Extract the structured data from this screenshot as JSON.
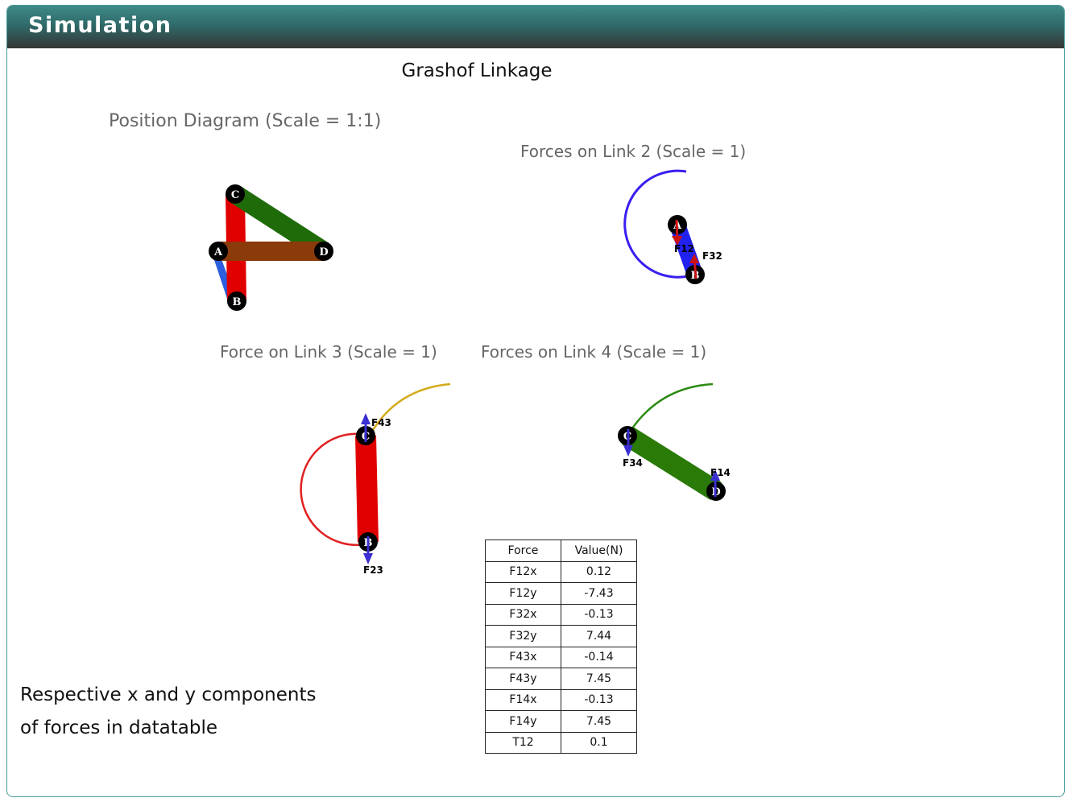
{
  "header": {
    "title": "Simulation"
  },
  "main": {
    "title": "Grashof Linkage",
    "position_diagram": {
      "title": "Position Diagram (Scale = 1:1)",
      "joints": [
        "A",
        "B",
        "C",
        "D"
      ]
    },
    "link2_diagram": {
      "title": "Forces on Link 2 (Scale = 1)",
      "joints": [
        "A",
        "B"
      ],
      "force_labels": [
        "F12",
        "F32"
      ]
    },
    "link3_diagram": {
      "title": "Force on Link 3 (Scale = 1)",
      "joints": [
        "C",
        "B"
      ],
      "force_labels": [
        "F43",
        "F23"
      ]
    },
    "link4_diagram": {
      "title": "Forces on Link 4 (Scale = 1)",
      "joints": [
        "C",
        "D"
      ],
      "force_labels": [
        "F34",
        "F14"
      ]
    },
    "note_lines": [
      "Respective x and y components",
      "of forces in datatable"
    ],
    "table": {
      "headers": [
        "Force",
        "Value(N)"
      ],
      "rows": [
        [
          "F12x",
          "0.12"
        ],
        [
          "F12y",
          "-7.43"
        ],
        [
          "F32x",
          "-0.13"
        ],
        [
          "F32y",
          "7.44"
        ],
        [
          "F43x",
          "-0.14"
        ],
        [
          "F43y",
          "7.45"
        ],
        [
          "F14x",
          "-0.13"
        ],
        [
          "F14y",
          "7.45"
        ],
        [
          "T12",
          "0.1"
        ]
      ]
    }
  },
  "colors": {
    "header_top": "#3f8a88",
    "header_bottom": "#353535",
    "link2": "#2b5fe0",
    "link3": "#e00000",
    "link4": "#1f6b0a",
    "link1": "#8b3a0a",
    "force_arrow": "#3a2fd0",
    "force_arrow_red": "#cc1111",
    "arc_link2": "#3a1ff0",
    "arc_link3": "#e02020",
    "arc_link3_alt": "#d4aa1a",
    "arc_link4": "#2a8a10"
  }
}
